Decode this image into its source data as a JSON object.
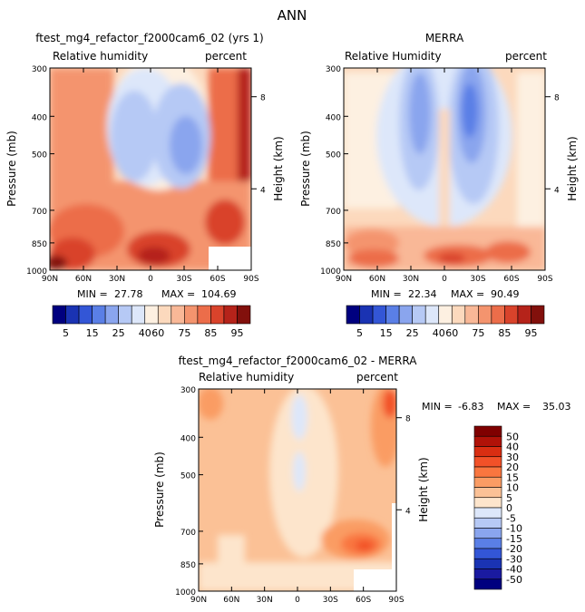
{
  "page_title": "ANN",
  "chart_data": [
    {
      "type": "heatmap",
      "id": "model",
      "title": "ftest_mg4_refactor_f2000cam6_02 (yrs 1)",
      "subtitle_left": "Relative humidity",
      "subtitle_right": "percent",
      "ylabel": "Pressure (mb)",
      "ylabel_right": "Height (km)",
      "x_ticks": [
        "90N",
        "60N",
        "30N",
        "0",
        "30S",
        "60S",
        "90S"
      ],
      "y_ticks": [
        "300",
        "400",
        "500",
        "700",
        "850",
        "1000"
      ],
      "height_ticks": [
        "8",
        "4"
      ],
      "stats": {
        "min_label": "MIN =",
        "min": "27.78",
        "max_label": "MAX =",
        "max": "104.69"
      },
      "colorbar_levels": [
        "5",
        "15",
        "25",
        "40",
        "60",
        "75",
        "85",
        "95"
      ]
    },
    {
      "type": "heatmap",
      "id": "obs",
      "title": "MERRA",
      "subtitle_left": "Relative Humidity",
      "subtitle_right": "percent",
      "ylabel": "Pressure (mb)",
      "ylabel_right": "Height (km)",
      "x_ticks": [
        "90N",
        "60N",
        "30N",
        "0",
        "30S",
        "60S",
        "90S"
      ],
      "y_ticks": [
        "300",
        "400",
        "500",
        "700",
        "850",
        "1000"
      ],
      "height_ticks": [
        "8",
        "4"
      ],
      "stats": {
        "min_label": "MIN =",
        "min": "22.34",
        "max_label": "MAX =",
        "max": "90.49"
      },
      "colorbar_levels": [
        "5",
        "15",
        "25",
        "40",
        "60",
        "75",
        "85",
        "95"
      ]
    },
    {
      "type": "heatmap",
      "id": "diff",
      "title": "ftest_mg4_refactor_f2000cam6_02 - MERRA",
      "subtitle_left": "Relative humidity",
      "subtitle_right": "percent",
      "ylabel": "Pressure (mb)",
      "ylabel_right": "Height (km)",
      "x_ticks": [
        "90N",
        "60N",
        "30N",
        "0",
        "30S",
        "60S",
        "90S"
      ],
      "y_ticks": [
        "300",
        "400",
        "500",
        "700",
        "850",
        "1000"
      ],
      "height_ticks": [
        "8",
        "4"
      ],
      "stats": {
        "min_label": "MIN =",
        "min": "-6.83",
        "max_label": "MAX =",
        "max": "35.03"
      },
      "colorbar_levels": [
        "50",
        "40",
        "30",
        "20",
        "15",
        "10",
        "5",
        "0",
        "-5",
        "-10",
        "-15",
        "-20",
        "-30",
        "-40",
        "-50"
      ]
    }
  ],
  "palettes": {
    "rh": [
      "#00007f",
      "#1a33b3",
      "#3356d6",
      "#5a7fe6",
      "#8aa5ee",
      "#b6c9f5",
      "#dde7fa",
      "#fdf0e1",
      "#fcd9bd",
      "#f9b897",
      "#f4946e",
      "#ec6d4a",
      "#d9432b",
      "#b5231a",
      "#82100c"
    ],
    "diff": [
      "#7f0000",
      "#b01208",
      "#d92e12",
      "#f25128",
      "#f9763f",
      "#fa9c64",
      "#fbc196",
      "#fde5cc",
      "#dde7fa",
      "#b6c9f5",
      "#8aa5ee",
      "#5a7fe6",
      "#3356d6",
      "#1a33b3",
      "#1a1aa0",
      "#00007f"
    ]
  }
}
